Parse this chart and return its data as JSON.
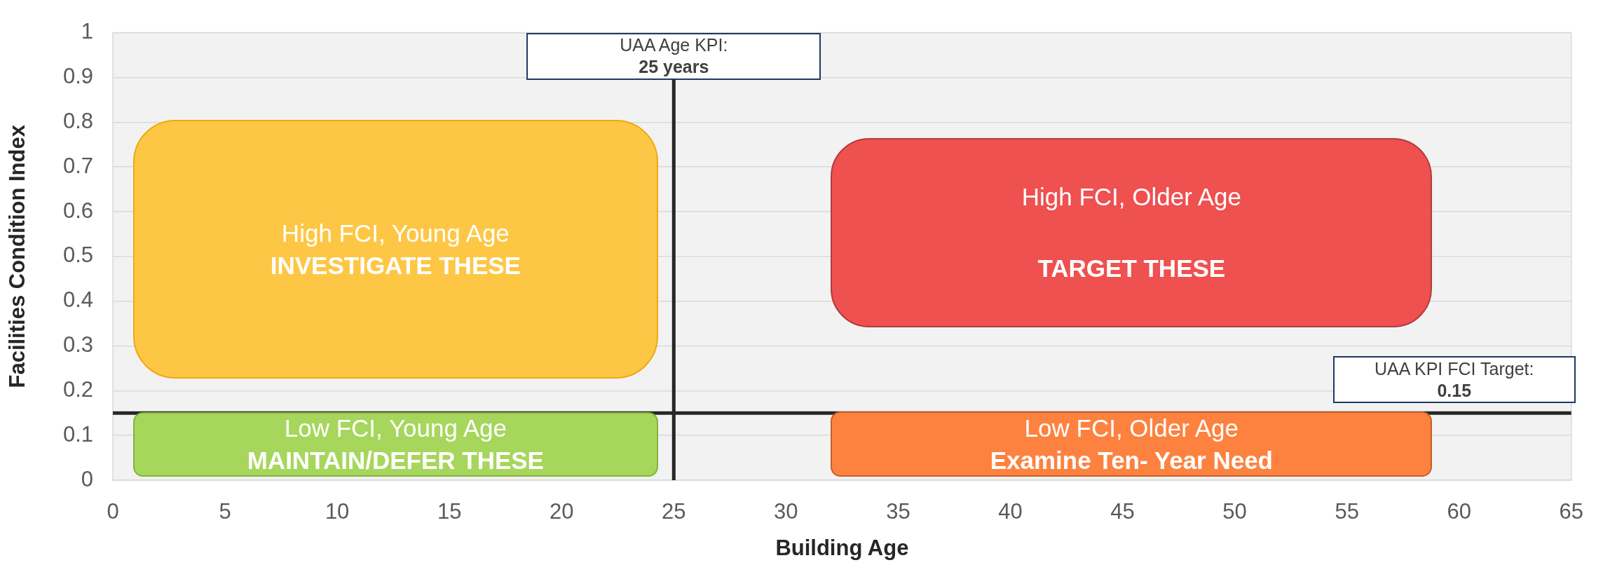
{
  "chart_data": {
    "type": "scatter",
    "xlabel": "Building Age",
    "ylabel": "Facilities Condition Index",
    "xlim": [
      0,
      65
    ],
    "xticks": [
      0,
      5,
      10,
      15,
      20,
      25,
      30,
      35,
      40,
      45,
      50,
      55,
      60,
      65
    ],
    "ylim": [
      0,
      1
    ],
    "yticks": [
      0,
      0.1,
      0.2,
      0.3,
      0.4,
      0.5,
      0.6,
      0.7,
      0.8,
      0.9,
      1
    ],
    "grid": "y",
    "ref_lines": [
      {
        "axis": "x",
        "value": 25,
        "label": "UAA Age KPI:\n25 years",
        "color": "#262626"
      },
      {
        "axis": "y",
        "value": 0.15,
        "label": "UAA KPI FCI Target:\n0.15",
        "color": "#262626"
      }
    ],
    "annotations": [
      "High FCI, Young Age\nINVESTIGATE THESE",
      "High FCI, Older Age\nTARGET THESE",
      "Low FCI, Young Age\nMAINTAIN/DEFER THESE",
      "Low FCI, Older Age\nExamine Ten- Year Need"
    ]
  }
}
